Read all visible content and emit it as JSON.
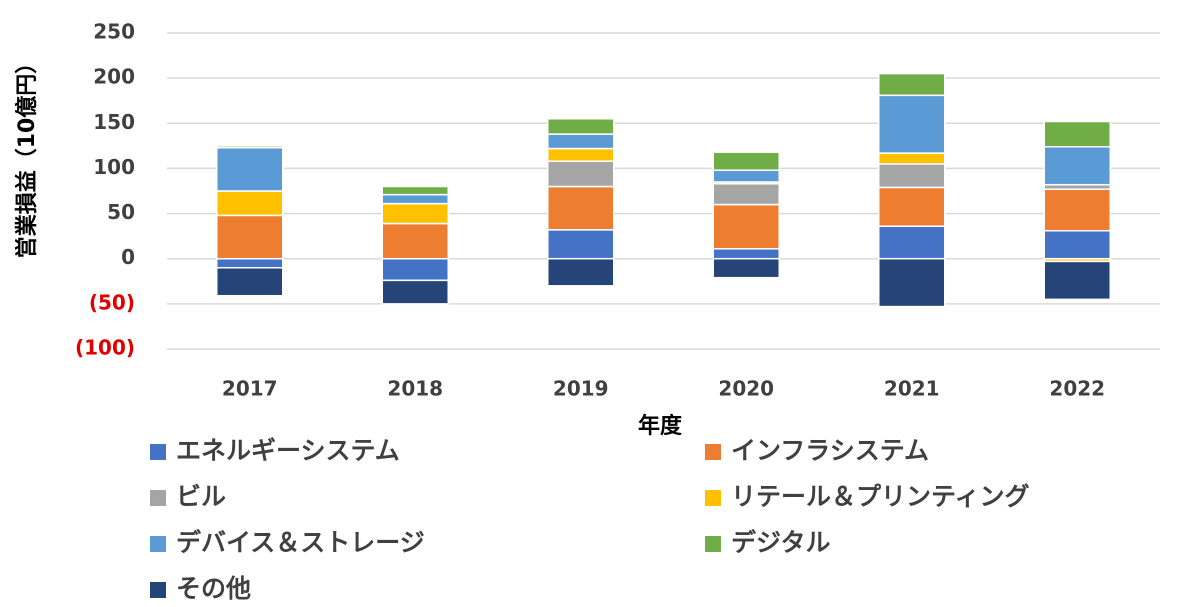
{
  "chart_data": {
    "type": "stacked-bar",
    "y_label": "営業損益（10億円）",
    "x_label": "年度",
    "categories": [
      "2017",
      "2018",
      "2019",
      "2020",
      "2021",
      "2022"
    ],
    "series": [
      {
        "name": "エネルギーシステム",
        "color": "#4472c4",
        "values": [
          -10,
          -24,
          32,
          11,
          36,
          31
        ]
      },
      {
        "name": "インフラシステム",
        "color": "#ed7d31",
        "values": [
          48,
          39,
          48,
          49,
          43,
          46
        ]
      },
      {
        "name": "ビル",
        "color": "#a5a5a5",
        "values": [
          0,
          0,
          28,
          23,
          26,
          5
        ]
      },
      {
        "name": "リテール＆プリンティング",
        "color": "#ffc000",
        "values": [
          27,
          22,
          14,
          2,
          12,
          -3
        ]
      },
      {
        "name": "デバイス＆ストレージ",
        "color": "#5b9bd5",
        "values": [
          48,
          10,
          16,
          13,
          64,
          42
        ]
      },
      {
        "name": "デジタル",
        "color": "#70ad47",
        "values": [
          2,
          9,
          17,
          20,
          24,
          28
        ]
      },
      {
        "name": "その他",
        "color": "#264478",
        "values": [
          -31,
          -26,
          -30,
          -21,
          -53,
          -42
        ]
      }
    ],
    "ylim": [
      -100,
      250
    ],
    "yticks": [
      {
        "value": -100,
        "label": "(100)"
      },
      {
        "value": -50,
        "label": "(50)"
      },
      0,
      50,
      100,
      150,
      200,
      250
    ],
    "negative_tick_color": "#e00000",
    "grid": true
  }
}
